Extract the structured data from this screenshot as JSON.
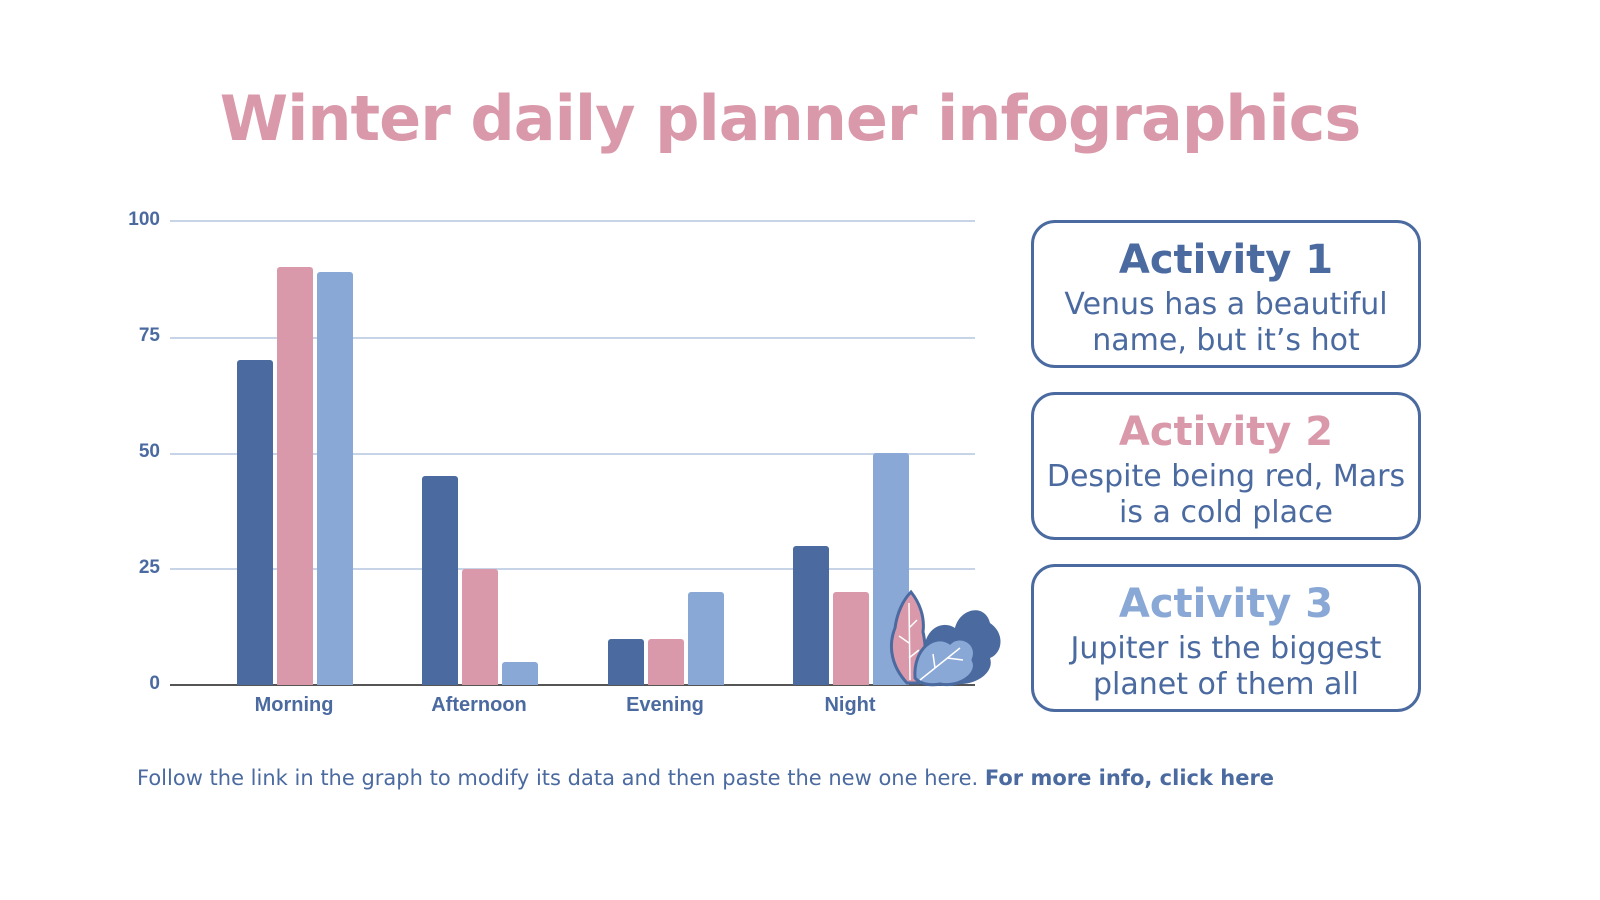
{
  "title": "Winter daily planner infographics",
  "colors": {
    "dark_blue": "#4a6aa0",
    "pink": "#d999aa",
    "light_blue": "#8aa8d6",
    "grid": "#c7d3e6"
  },
  "chart_data": {
    "type": "bar",
    "title": "",
    "categories": [
      "Morning",
      "Afternoon",
      "Evening",
      "Night"
    ],
    "series": [
      {
        "name": "Activity 1",
        "color": "#4a6aa0",
        "values": [
          70,
          45,
          10,
          30
        ]
      },
      {
        "name": "Activity 2",
        "color": "#d999aa",
        "values": [
          90,
          25,
          10,
          20
        ]
      },
      {
        "name": "Activity 3",
        "color": "#8aa8d6",
        "values": [
          89,
          5,
          20,
          50
        ]
      }
    ],
    "yticks": [
      "0",
      "25",
      "50",
      "75",
      "100"
    ],
    "ylim": [
      0,
      100
    ],
    "xlabel": "",
    "ylabel": "",
    "grid": true,
    "legend": "none"
  },
  "cards": [
    {
      "title": "Activity 1",
      "line1": "Venus has a beautiful",
      "line2": "name, but it’s hot",
      "color": "#4a6aa0"
    },
    {
      "title": "Activity 2",
      "line1": "Despite being red, Mars",
      "line2": "is a cold place",
      "color": "#d999aa"
    },
    {
      "title": "Activity 3",
      "line1": "Jupiter is the biggest",
      "line2": "planet of them all",
      "color": "#8aa8d6"
    }
  ],
  "footer": {
    "text": "Follow the link in the graph to modify its data and then paste the new one here. ",
    "link": "For more info, click here"
  }
}
